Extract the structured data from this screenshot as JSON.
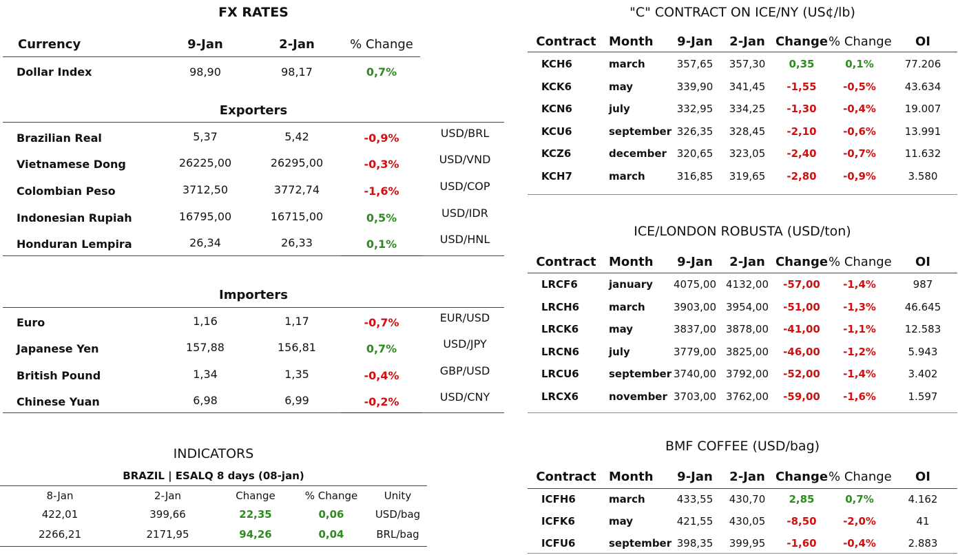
{
  "fx": {
    "title": "FX RATES",
    "headers": {
      "currency": "Currency",
      "d1": "9-Jan",
      "d2": "2-Jan",
      "pct": "% Change"
    },
    "dollar_index": {
      "name": "Dollar Index",
      "v1": "98,90",
      "v2": "98,17",
      "pct": "0,7%",
      "dir": "pos"
    },
    "exporters_title": "Exporters",
    "exporters": [
      {
        "name": "Brazilian Real",
        "v1": "5,37",
        "v2": "5,42",
        "pct": "-0,9%",
        "dir": "neg",
        "pair": "USD/BRL"
      },
      {
        "name": "Vietnamese Dong",
        "v1": "26225,00",
        "v2": "26295,00",
        "pct": "-0,3%",
        "dir": "neg",
        "pair": "USD/VND"
      },
      {
        "name": "Colombian Peso",
        "v1": "3712,50",
        "v2": "3772,74",
        "pct": "-1,6%",
        "dir": "neg",
        "pair": "USD/COP"
      },
      {
        "name": "Indonesian Rupiah",
        "v1": "16795,00",
        "v2": "16715,00",
        "pct": "0,5%",
        "dir": "pos",
        "pair": "USD/IDR"
      },
      {
        "name": "Honduran Lempira",
        "v1": "26,34",
        "v2": "26,33",
        "pct": "0,1%",
        "dir": "pos",
        "pair": "USD/HNL"
      }
    ],
    "importers_title": "Importers",
    "importers": [
      {
        "name": "Euro",
        "v1": "1,16",
        "v2": "1,17",
        "pct": "-0,7%",
        "dir": "neg",
        "pair": "EUR/USD"
      },
      {
        "name": "Japanese Yen",
        "v1": "157,88",
        "v2": "156,81",
        "pct": "0,7%",
        "dir": "pos",
        "pair": "USD/JPY"
      },
      {
        "name": "British Pound",
        "v1": "1,34",
        "v2": "1,35",
        "pct": "-0,4%",
        "dir": "neg",
        "pair": "GBP/USD"
      },
      {
        "name": "Chinese Yuan",
        "v1": "6,98",
        "v2": "6,99",
        "pct": "-0,2%",
        "dir": "neg",
        "pair": "USD/CNY"
      }
    ]
  },
  "indicators": {
    "title": "INDICATORS",
    "subtitle": "BRAZIL | ESALQ 8 days (08-jan)",
    "headers": [
      "8-Jan",
      "2-Jan",
      "Change",
      "% Change",
      "Unity"
    ],
    "rows": [
      {
        "v1": "422,01",
        "v2": "399,66",
        "chg": "22,35",
        "pct": "0,06",
        "unit": "USD/bag"
      },
      {
        "v1": "2266,21",
        "v2": "2171,95",
        "chg": "94,26",
        "pct": "0,04",
        "unit": "BRL/bag"
      }
    ]
  },
  "tables": [
    {
      "title": "\"C\" CONTRACT ON ICE/NY (US¢/lb)",
      "headers": [
        "Contract",
        "Month",
        "9-Jan",
        "2-Jan",
        "Change",
        "% Change",
        "OI"
      ],
      "rows": [
        {
          "contract": "KCH6",
          "month": "march",
          "v1": "357,65",
          "v2": "357,30",
          "chg": "0,35",
          "pct": "0,1%",
          "oi": "77.206",
          "dir": "pos"
        },
        {
          "contract": "KCK6",
          "month": "may",
          "v1": "339,90",
          "v2": "341,45",
          "chg": "-1,55",
          "pct": "-0,5%",
          "oi": "43.634",
          "dir": "neg"
        },
        {
          "contract": "KCN6",
          "month": "july",
          "v1": "332,95",
          "v2": "334,25",
          "chg": "-1,30",
          "pct": "-0,4%",
          "oi": "19.007",
          "dir": "neg"
        },
        {
          "contract": "KCU6",
          "month": "september",
          "v1": "326,35",
          "v2": "328,45",
          "chg": "-2,10",
          "pct": "-0,6%",
          "oi": "13.991",
          "dir": "neg"
        },
        {
          "contract": "KCZ6",
          "month": "december",
          "v1": "320,65",
          "v2": "323,05",
          "chg": "-2,40",
          "pct": "-0,7%",
          "oi": "11.632",
          "dir": "neg"
        },
        {
          "contract": "KCH7",
          "month": "march",
          "v1": "316,85",
          "v2": "319,65",
          "chg": "-2,80",
          "pct": "-0,9%",
          "oi": "3.580",
          "dir": "neg"
        }
      ]
    },
    {
      "title": "ICE/LONDON ROBUSTA (USD/ton)",
      "headers": [
        "Contract",
        "Month",
        "9-Jan",
        "2-Jan",
        "Change",
        "% Change",
        "OI"
      ],
      "rows": [
        {
          "contract": "LRCF6",
          "month": "january",
          "v1": "4075,00",
          "v2": "4132,00",
          "chg": "-57,00",
          "pct": "-1,4%",
          "oi": "987",
          "dir": "neg"
        },
        {
          "contract": "LRCH6",
          "month": "march",
          "v1": "3903,00",
          "v2": "3954,00",
          "chg": "-51,00",
          "pct": "-1,3%",
          "oi": "46.645",
          "dir": "neg"
        },
        {
          "contract": "LRCK6",
          "month": "may",
          "v1": "3837,00",
          "v2": "3878,00",
          "chg": "-41,00",
          "pct": "-1,1%",
          "oi": "12.583",
          "dir": "neg"
        },
        {
          "contract": "LRCN6",
          "month": "july",
          "v1": "3779,00",
          "v2": "3825,00",
          "chg": "-46,00",
          "pct": "-1,2%",
          "oi": "5.943",
          "dir": "neg"
        },
        {
          "contract": "LRCU6",
          "month": "september",
          "v1": "3740,00",
          "v2": "3792,00",
          "chg": "-52,00",
          "pct": "-1,4%",
          "oi": "3.402",
          "dir": "neg"
        },
        {
          "contract": "LRCX6",
          "month": "november",
          "v1": "3703,00",
          "v2": "3762,00",
          "chg": "-59,00",
          "pct": "-1,6%",
          "oi": "1.597",
          "dir": "neg"
        }
      ]
    },
    {
      "title": "BMF COFFEE (USD/bag)",
      "headers": [
        "Contract",
        "Month",
        "9-Jan",
        "2-Jan",
        "Change",
        "% Change",
        "OI"
      ],
      "rows": [
        {
          "contract": "ICFH6",
          "month": "march",
          "v1": "433,55",
          "v2": "430,70",
          "chg": "2,85",
          "pct": "0,7%",
          "oi": "4.162",
          "dir": "pos"
        },
        {
          "contract": "ICFK6",
          "month": "may",
          "v1": "421,55",
          "v2": "430,05",
          "chg": "-8,50",
          "pct": "-2,0%",
          "oi": "41",
          "dir": "neg"
        },
        {
          "contract": "ICFU6",
          "month": "september",
          "v1": "398,35",
          "v2": "399,95",
          "chg": "-1,60",
          "pct": "-0,4%",
          "oi": "2.883",
          "dir": "neg"
        }
      ]
    }
  ],
  "colors": {
    "positive": "#2e8b1f",
    "negative": "#d10f0f"
  }
}
